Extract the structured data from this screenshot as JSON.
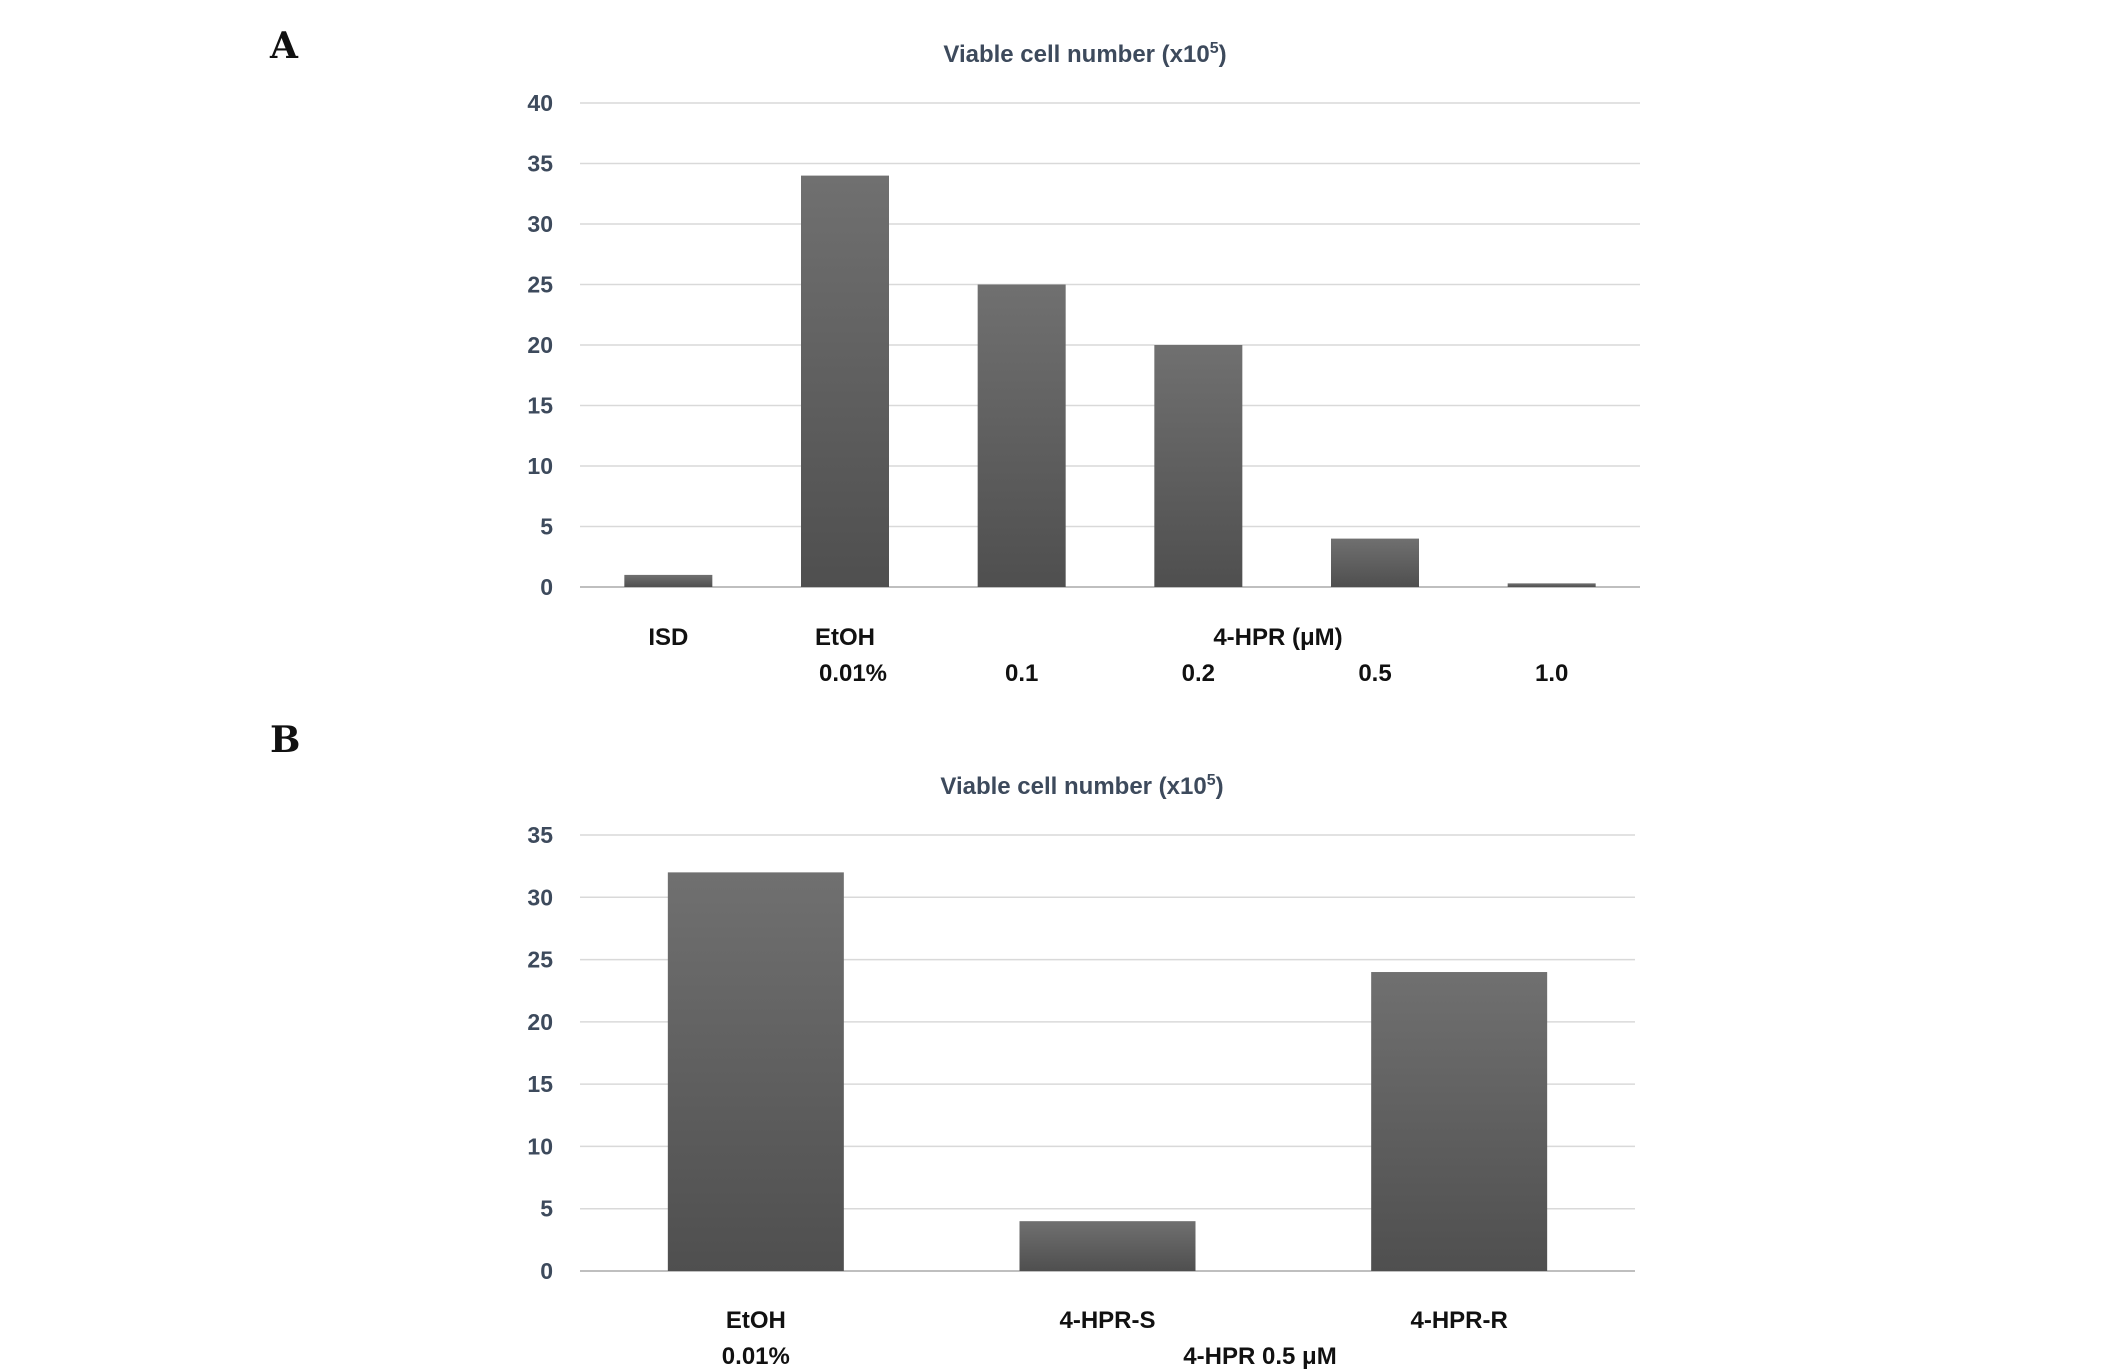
{
  "chart_data": [
    {
      "type": "bar",
      "panel": "A",
      "title": "Viable cell number (x10",
      "title_sup": "5",
      "title_close": ")",
      "ylim": [
        0,
        40
      ],
      "yticks": [
        0,
        5,
        10,
        15,
        20,
        25,
        30,
        35,
        40
      ],
      "grid": true,
      "categories": [
        "ISD",
        "EtOH 0.01%",
        "0.1",
        "0.2",
        "0.5",
        "1.0"
      ],
      "values": [
        1,
        34,
        25,
        20,
        4,
        0.3
      ],
      "labels_top": [
        "ISD",
        "EtOH",
        "",
        "",
        "",
        ""
      ],
      "labels_bottom": [
        "",
        "0.01%",
        "0.1",
        "0.2",
        "0.5",
        "1.0"
      ],
      "group_label": "4-HPR (μM)",
      "bar_color": "#5e5e5e"
    },
    {
      "type": "bar",
      "panel": "B",
      "title": "Viable cell number (x10",
      "title_sup": "5",
      "title_close": ")",
      "ylim": [
        0,
        35
      ],
      "yticks": [
        0,
        5,
        10,
        15,
        20,
        25,
        30,
        35
      ],
      "grid": true,
      "categories": [
        "EtOH 0.01%",
        "4-HPR-S",
        "4-HPR-R"
      ],
      "values": [
        32,
        4,
        24
      ],
      "labels_top": [
        "EtOH",
        "4-HPR-S",
        "4-HPR-R"
      ],
      "labels_bottom": [
        "0.01%",
        "",
        ""
      ],
      "group_label": "4-HPR 0.5 μM",
      "bar_color": "#5e5e5e"
    }
  ]
}
